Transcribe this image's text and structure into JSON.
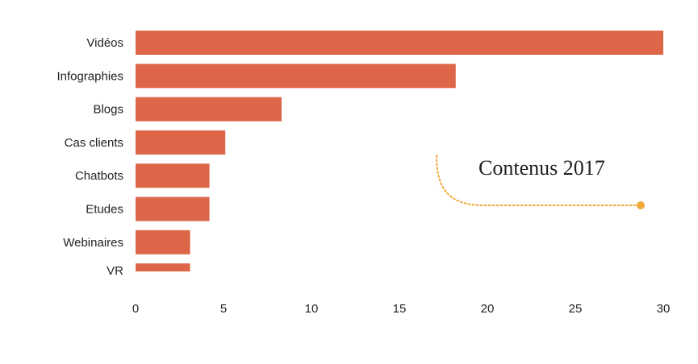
{
  "chart_data": {
    "type": "bar",
    "orientation": "horizontal",
    "title": "",
    "xlabel": "",
    "ylabel": "",
    "categories": [
      "Vidéos",
      "Infographies",
      "Blogs",
      "Cas clients",
      "Chatbots",
      "Etudes",
      "Webinaires",
      "VR"
    ],
    "values": [
      30.2,
      18.2,
      8.3,
      5.1,
      4.2,
      4.2,
      3.1,
      3.1
    ],
    "xlim": [
      0,
      30
    ],
    "xticks": [
      0,
      5,
      10,
      15,
      20,
      25,
      30
    ],
    "grid": false,
    "legend": "none",
    "bar_color": "#dd6649",
    "annotation": {
      "text": "Contenus 2017",
      "connector_color": "#f0a93a"
    }
  }
}
